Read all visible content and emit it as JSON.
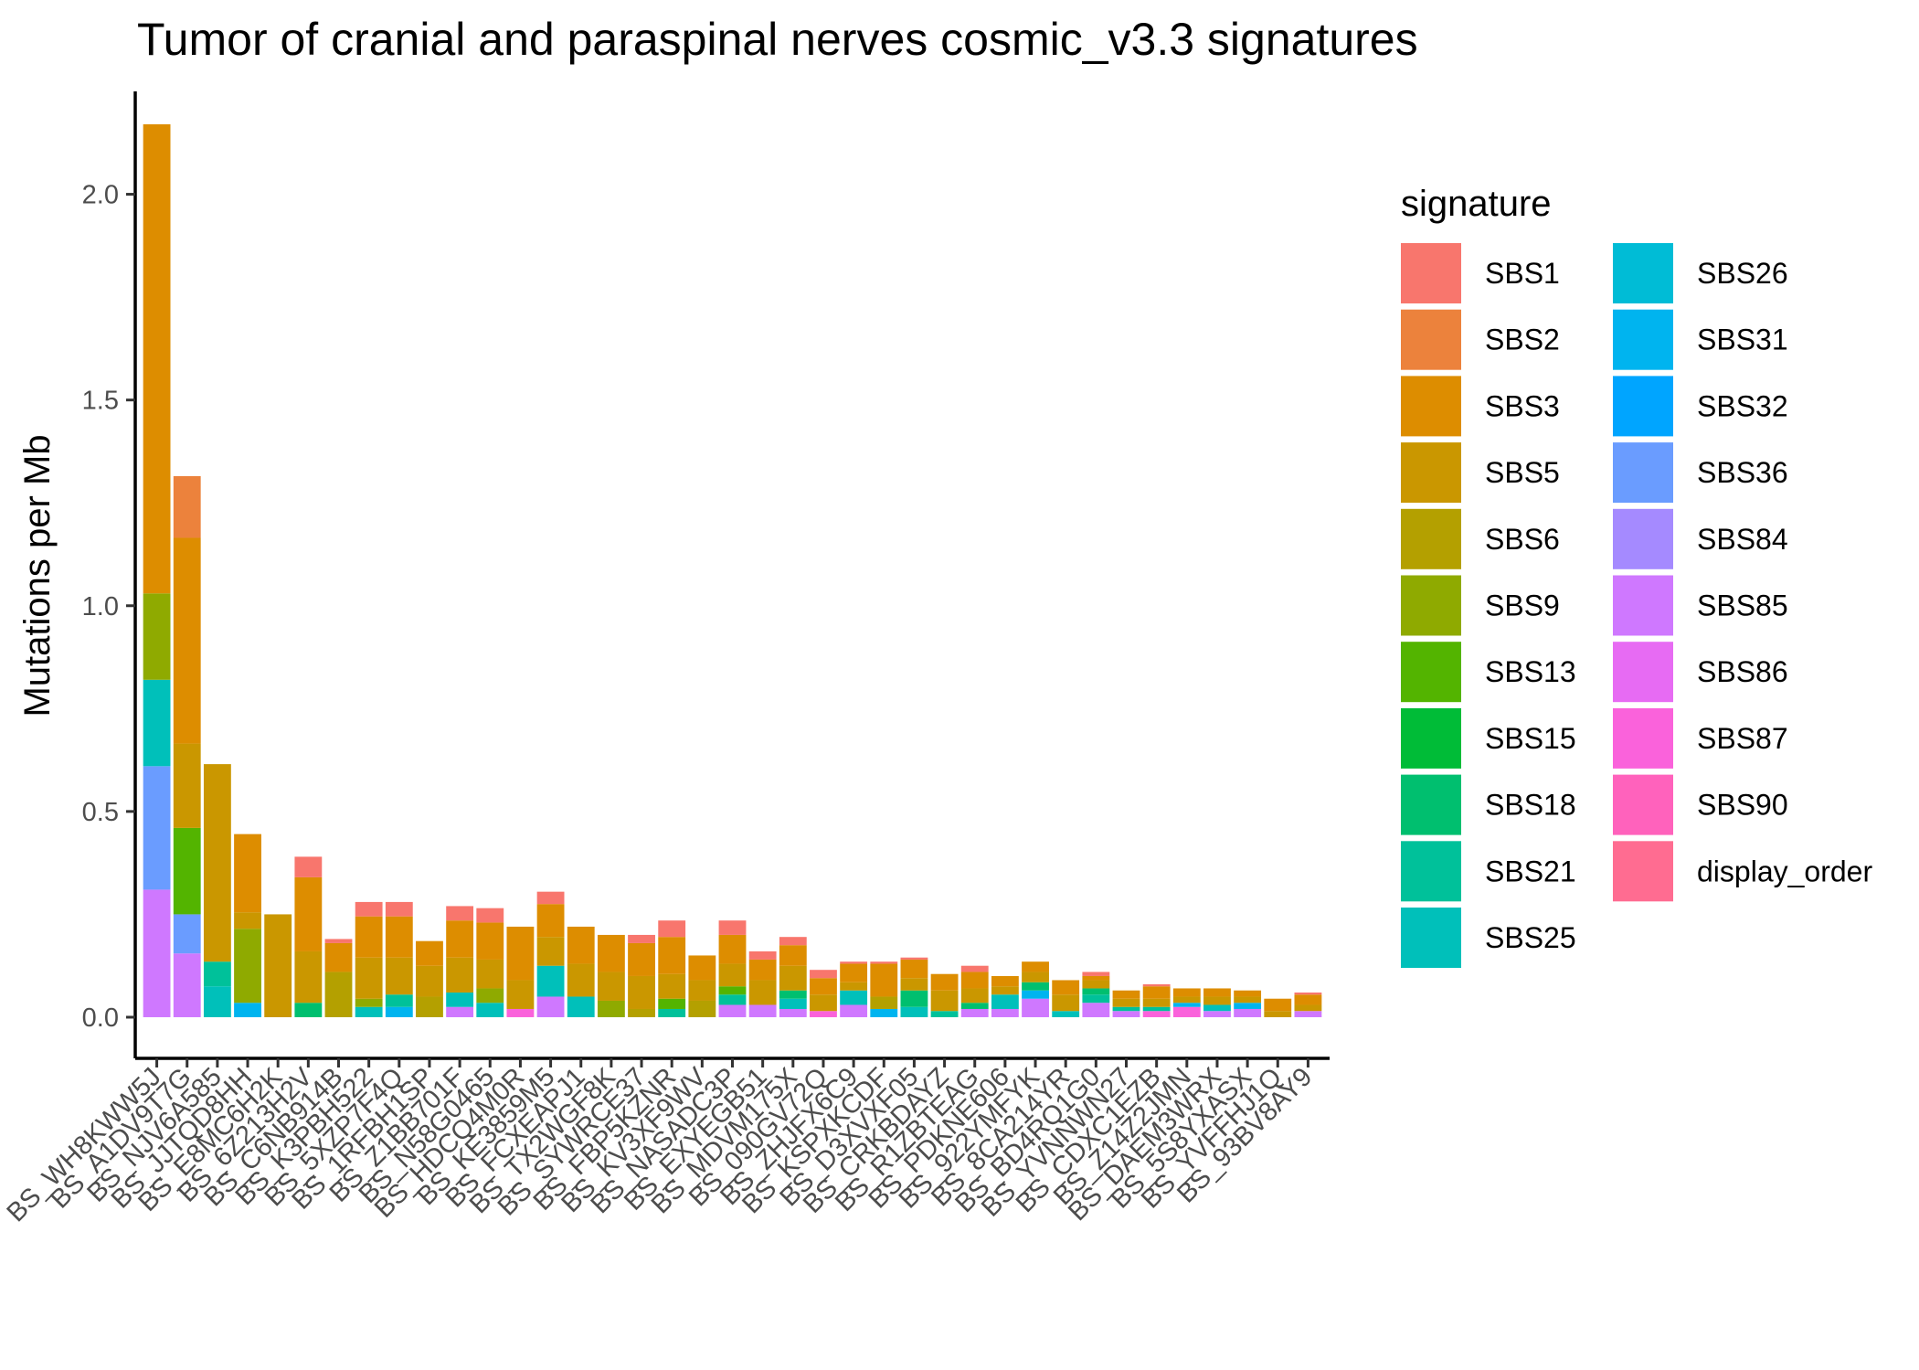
{
  "chart_data": {
    "type": "bar",
    "stacked": true,
    "title": "Tumor of cranial and paraspinal nerves cosmic_v3.3 signatures",
    "xlabel": "",
    "ylabel": "Mutations per Mb",
    "ylim": [
      -0.1,
      2.25
    ],
    "y_ticks": [
      0.0,
      0.5,
      1.0,
      1.5,
      2.0
    ],
    "y_tick_labels": [
      "0.0",
      "0.5",
      "1.0",
      "1.5",
      "2.0"
    ],
    "grid": false,
    "legend": {
      "title": "signature",
      "position": "right",
      "columns": 2
    },
    "categories": [
      "BS_WH8KWW5J",
      "BS_A1DV9T7G",
      "BS_NJV6A585",
      "BS_JJTQD8HH",
      "BS_E8MC6H2K",
      "BS_6Z213H2V",
      "BS_C6NB914B",
      "BS_K3PBH522",
      "BS_5XZP7F4Q",
      "BS_1RFBH1SP",
      "BS_Z1BB701F",
      "BS_N58G0465",
      "BS_HDCQ4M0R",
      "BS_KE3859M5",
      "BS_FCXEAPJ1",
      "BS_TX2WGF8K",
      "BS_SYWRCE37",
      "BS_FBP5KZNR",
      "BS_KV3XF9WV",
      "BS_NASADC3P",
      "BS_EXYEGB51",
      "BS_MDVM175X",
      "BS_090GV72Q",
      "BS_ZHJFX6C9",
      "BS_KSPXKCDF",
      "BS_D3XVXF05",
      "BS_CRKBDAYZ",
      "BS_R1ZBTEAG",
      "BS_PDKNE606",
      "BS_922YMFYK",
      "BS_8CA214YR",
      "BS_BD4RQ1G0",
      "BS_YVNNWN27",
      "BS_CDXC1EZB",
      "BS_Z14Z2JMN",
      "BS_DAEM3WRX",
      "BS_5S8YXASX",
      "BS_YVFFHJ1Q",
      "BS_93BV8AY9"
    ],
    "series_colors": {
      "SBS1": "#F8766D",
      "SBS2": "#EC823C",
      "SBS3": "#DD8D00",
      "SBS5": "#CA9700",
      "SBS6": "#B4A000",
      "SBS9": "#8FAA00",
      "SBS13": "#53B400",
      "SBS15": "#00BC37",
      "SBS18": "#00BF6F",
      "SBS21": "#00C19A",
      "SBS25": "#00C0BA",
      "SBS26": "#00BCD6",
      "SBS31": "#00B4EF",
      "SBS32": "#00A5FF",
      "SBS36": "#6A9CFF",
      "SBS84": "#A58AFF",
      "SBS85": "#CF78FF",
      "SBS86": "#E76BF3",
      "SBS87": "#FA62DB",
      "SBS90": "#FF62BC",
      "display_order": "#FF6C91"
    },
    "legend_order": [
      "SBS1",
      "SBS2",
      "SBS3",
      "SBS5",
      "SBS6",
      "SBS9",
      "SBS13",
      "SBS15",
      "SBS18",
      "SBS21",
      "SBS25",
      "SBS26",
      "SBS31",
      "SBS32",
      "SBS36",
      "SBS84",
      "SBS85",
      "SBS86",
      "SBS87",
      "SBS90",
      "display_order"
    ],
    "bars": [
      {
        "x": "BS_WH8KWW5J",
        "stack": [
          [
            "SBS85",
            0.31
          ],
          [
            "SBS36",
            0.3
          ],
          [
            "SBS25",
            0.21
          ],
          [
            "SBS9",
            0.21
          ],
          [
            "SBS3",
            1.14
          ]
        ]
      },
      {
        "x": "BS_A1DV9T7G",
        "stack": [
          [
            "SBS85",
            0.155
          ],
          [
            "SBS36",
            0.095
          ],
          [
            "SBS13",
            0.21
          ],
          [
            "SBS5",
            0.205
          ],
          [
            "SBS3",
            0.5
          ],
          [
            "SBS2",
            0.15
          ]
        ]
      },
      {
        "x": "BS_NJV6A585",
        "stack": [
          [
            "SBS25",
            0.075
          ],
          [
            "SBS21",
            0.06
          ],
          [
            "SBS5",
            0.48
          ]
        ]
      },
      {
        "x": "BS_JJTQD8HH",
        "stack": [
          [
            "SBS31",
            0.035
          ],
          [
            "SBS9",
            0.18
          ],
          [
            "SBS5",
            0.04
          ],
          [
            "SBS3",
            0.19
          ]
        ]
      },
      {
        "x": "BS_E8MC6H2K",
        "stack": [
          [
            "SBS5",
            0.25
          ]
        ]
      },
      {
        "x": "BS_6Z213H2V",
        "stack": [
          [
            "SBS18",
            0.035
          ],
          [
            "SBS5",
            0.125
          ],
          [
            "SBS3",
            0.18
          ],
          [
            "SBS1",
            0.05
          ]
        ]
      },
      {
        "x": "BS_C6NB914B",
        "stack": [
          [
            "SBS6",
            0.11
          ],
          [
            "SBS3",
            0.07
          ],
          [
            "SBS1",
            0.01
          ]
        ]
      },
      {
        "x": "BS_K3PBH522",
        "stack": [
          [
            "SBS25",
            0.025
          ],
          [
            "SBS9",
            0.02
          ],
          [
            "SBS5",
            0.1
          ],
          [
            "SBS3",
            0.1
          ],
          [
            "SBS1",
            0.035
          ]
        ]
      },
      {
        "x": "BS_5XZP7F4Q",
        "stack": [
          [
            "SBS31",
            0.025
          ],
          [
            "SBS21",
            0.03
          ],
          [
            "SBS5",
            0.09
          ],
          [
            "SBS3",
            0.1
          ],
          [
            "SBS1",
            0.035
          ]
        ]
      },
      {
        "x": "BS_1RFBH1SP",
        "stack": [
          [
            "SBS6",
            0.05
          ],
          [
            "SBS5",
            0.075
          ],
          [
            "SBS3",
            0.06
          ]
        ]
      },
      {
        "x": "BS_Z1BB701F",
        "stack": [
          [
            "SBS85",
            0.025
          ],
          [
            "SBS25",
            0.035
          ],
          [
            "SBS5",
            0.085
          ],
          [
            "SBS3",
            0.09
          ],
          [
            "SBS1",
            0.035
          ]
        ]
      },
      {
        "x": "BS_N58G0465",
        "stack": [
          [
            "SBS25",
            0.035
          ],
          [
            "SBS9",
            0.035
          ],
          [
            "SBS5",
            0.07
          ],
          [
            "SBS3",
            0.09
          ],
          [
            "SBS1",
            0.035
          ]
        ]
      },
      {
        "x": "BS_HDCQ4M0R",
        "stack": [
          [
            "SBS87",
            0.02
          ],
          [
            "SBS5",
            0.07
          ],
          [
            "SBS3",
            0.13
          ]
        ]
      },
      {
        "x": "BS_KE3859M5",
        "stack": [
          [
            "SBS85",
            0.05
          ],
          [
            "SBS25",
            0.075
          ],
          [
            "SBS5",
            0.07
          ],
          [
            "SBS3",
            0.08
          ],
          [
            "SBS1",
            0.03
          ]
        ]
      },
      {
        "x": "BS_FCXEAPJ1",
        "stack": [
          [
            "SBS25",
            0.05
          ],
          [
            "SBS5",
            0.08
          ],
          [
            "SBS3",
            0.09
          ]
        ]
      },
      {
        "x": "BS_TX2WGF8K",
        "stack": [
          [
            "SBS9",
            0.04
          ],
          [
            "SBS5",
            0.07
          ],
          [
            "SBS3",
            0.09
          ]
        ]
      },
      {
        "x": "BS_SYWRCE37",
        "stack": [
          [
            "SBS6",
            0.02
          ],
          [
            "SBS5",
            0.08
          ],
          [
            "SBS3",
            0.08
          ],
          [
            "SBS1",
            0.02
          ]
        ]
      },
      {
        "x": "BS_FBP5KZNR",
        "stack": [
          [
            "SBS21",
            0.02
          ],
          [
            "SBS13",
            0.025
          ],
          [
            "SBS5",
            0.06
          ],
          [
            "SBS3",
            0.09
          ],
          [
            "SBS1",
            0.04
          ]
        ]
      },
      {
        "x": "BS_KV3XF9WV",
        "stack": [
          [
            "SBS6",
            0.04
          ],
          [
            "SBS5",
            0.05
          ],
          [
            "SBS3",
            0.06
          ]
        ]
      },
      {
        "x": "BS_NASADC3P",
        "stack": [
          [
            "SBS85",
            0.03
          ],
          [
            "SBS21",
            0.025
          ],
          [
            "SBS13",
            0.02
          ],
          [
            "SBS5",
            0.055
          ],
          [
            "SBS3",
            0.07
          ],
          [
            "SBS1",
            0.035
          ]
        ]
      },
      {
        "x": "BS_EXYEGB51",
        "stack": [
          [
            "SBS85",
            0.03
          ],
          [
            "SBS5",
            0.06
          ],
          [
            "SBS3",
            0.05
          ],
          [
            "SBS1",
            0.02
          ]
        ]
      },
      {
        "x": "BS_MDVM175X",
        "stack": [
          [
            "SBS85",
            0.02
          ],
          [
            "SBS25",
            0.025
          ],
          [
            "SBS18",
            0.02
          ],
          [
            "SBS5",
            0.06
          ],
          [
            "SBS3",
            0.05
          ],
          [
            "SBS1",
            0.02
          ]
        ]
      },
      {
        "x": "BS_090GV72Q",
        "stack": [
          [
            "SBS87",
            0.015
          ],
          [
            "SBS5",
            0.04
          ],
          [
            "SBS3",
            0.04
          ],
          [
            "SBS1",
            0.02
          ]
        ]
      },
      {
        "x": "BS_ZHJFX6C9",
        "stack": [
          [
            "SBS85",
            0.03
          ],
          [
            "SBS25",
            0.035
          ],
          [
            "SBS5",
            0.02
          ],
          [
            "SBS3",
            0.045
          ],
          [
            "SBS1",
            0.005
          ]
        ]
      },
      {
        "x": "BS_KSPXKCDF",
        "stack": [
          [
            "SBS31",
            0.02
          ],
          [
            "SBS6",
            0.03
          ],
          [
            "SBS3",
            0.08
          ],
          [
            "SBS1",
            0.005
          ]
        ]
      },
      {
        "x": "BS_D3XVXF05",
        "stack": [
          [
            "SBS25",
            0.025
          ],
          [
            "SBS18",
            0.04
          ],
          [
            "SBS5",
            0.03
          ],
          [
            "SBS3",
            0.045
          ],
          [
            "SBS1",
            0.005
          ]
        ]
      },
      {
        "x": "BS_CRKBDAYZ",
        "stack": [
          [
            "SBS21",
            0.015
          ],
          [
            "SBS5",
            0.05
          ],
          [
            "SBS3",
            0.04
          ]
        ]
      },
      {
        "x": "BS_R1ZBTEAG",
        "stack": [
          [
            "SBS85",
            0.02
          ],
          [
            "SBS18",
            0.015
          ],
          [
            "SBS5",
            0.035
          ],
          [
            "SBS3",
            0.04
          ],
          [
            "SBS1",
            0.015
          ]
        ]
      },
      {
        "x": "BS_PDKNE606",
        "stack": [
          [
            "SBS85",
            0.02
          ],
          [
            "SBS25",
            0.035
          ],
          [
            "SBS5",
            0.02
          ],
          [
            "SBS3",
            0.025
          ]
        ]
      },
      {
        "x": "BS_922YMFYK",
        "stack": [
          [
            "SBS85",
            0.045
          ],
          [
            "SBS31",
            0.02
          ],
          [
            "SBS18",
            0.02
          ],
          [
            "SBS5",
            0.025
          ],
          [
            "SBS3",
            0.025
          ]
        ]
      },
      {
        "x": "BS_8CA214YR",
        "stack": [
          [
            "SBS25",
            0.015
          ],
          [
            "SBS5",
            0.04
          ],
          [
            "SBS3",
            0.035
          ]
        ]
      },
      {
        "x": "BS_BD4RQ1G0",
        "stack": [
          [
            "SBS85",
            0.035
          ],
          [
            "SBS21",
            0.02
          ],
          [
            "SBS18",
            0.015
          ],
          [
            "SBS5",
            0.02
          ],
          [
            "SBS3",
            0.01
          ],
          [
            "SBS1",
            0.01
          ]
        ]
      },
      {
        "x": "BS_YVNNWN27",
        "stack": [
          [
            "SBS85",
            0.015
          ],
          [
            "SBS21",
            0.01
          ],
          [
            "SBS5",
            0.02
          ],
          [
            "SBS3",
            0.02
          ]
        ]
      },
      {
        "x": "BS_CDXC1EZB",
        "stack": [
          [
            "SBS87",
            0.015
          ],
          [
            "SBS21",
            0.01
          ],
          [
            "SBS5",
            0.02
          ],
          [
            "SBS3",
            0.03
          ],
          [
            "SBS1",
            0.005
          ]
        ]
      },
      {
        "x": "BS_Z14Z2JMN",
        "stack": [
          [
            "SBS87",
            0.025
          ],
          [
            "SBS31",
            0.01
          ],
          [
            "SBS5",
            0.015
          ],
          [
            "SBS3",
            0.02
          ]
        ]
      },
      {
        "x": "BS_DAEM3WRX",
        "stack": [
          [
            "SBS85",
            0.015
          ],
          [
            "SBS25",
            0.015
          ],
          [
            "SBS5",
            0.02
          ],
          [
            "SBS3",
            0.02
          ]
        ]
      },
      {
        "x": "BS_5S8YXASX",
        "stack": [
          [
            "SBS85",
            0.02
          ],
          [
            "SBS31",
            0.015
          ],
          [
            "SBS5",
            0.015
          ],
          [
            "SBS3",
            0.015
          ]
        ]
      },
      {
        "x": "BS_YVFFHJ1Q",
        "stack": [
          [
            "SBS5",
            0.015
          ],
          [
            "SBS3",
            0.03
          ]
        ]
      },
      {
        "x": "BS_93BV8AY9",
        "stack": [
          [
            "SBS85",
            0.015
          ],
          [
            "SBS5",
            0.015
          ],
          [
            "SBS3",
            0.025
          ],
          [
            "SBS1",
            0.005
          ]
        ]
      }
    ]
  }
}
